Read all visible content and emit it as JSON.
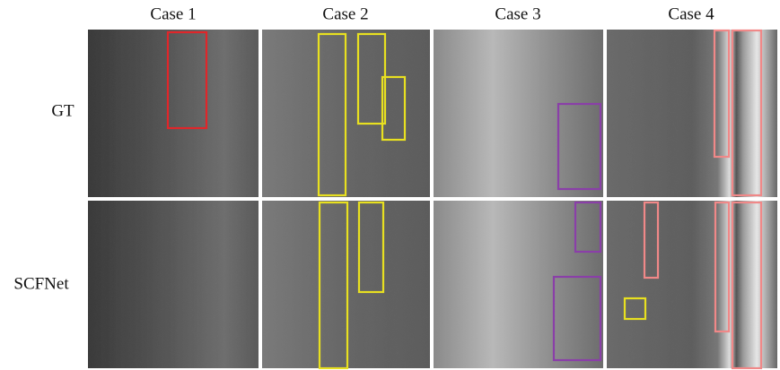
{
  "columns": [
    "Case 1",
    "Case 2",
    "Case 3",
    "Case 4"
  ],
  "rows": [
    "GT",
    "SCFNet"
  ]
}
